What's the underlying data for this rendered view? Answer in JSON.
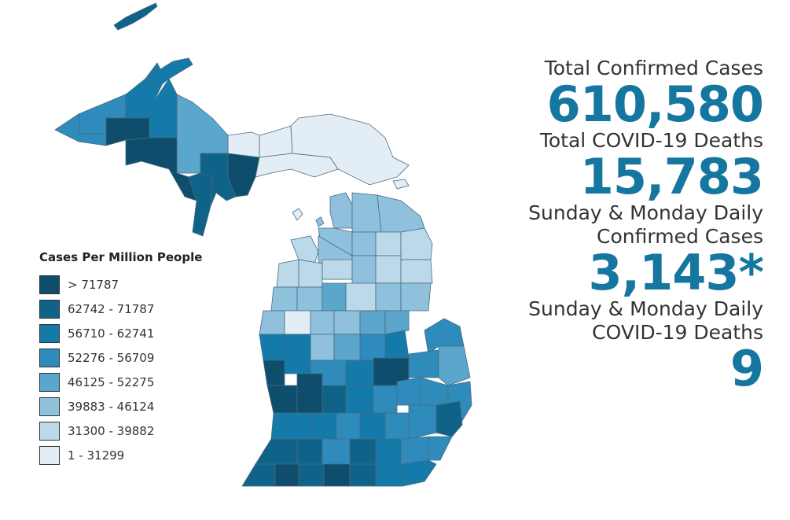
{
  "colors": {
    "c1": "#0e4d6b",
    "c2": "#0f6388",
    "c3": "#137aaa",
    "c4": "#2e8bbc",
    "c5": "#5aa6cc",
    "c6": "#8fc1dd",
    "c7": "#bcd9ea",
    "c8": "#e3edf5",
    "accent": "#1576a0"
  },
  "legend": {
    "title": "Cases Per Million People",
    "items": [
      {
        "label": "> 71787",
        "color": "#0e4d6b"
      },
      {
        "label": "62742 - 71787",
        "color": "#0f6388"
      },
      {
        "label": "56710 - 62741",
        "color": "#137aaa"
      },
      {
        "label": "52276 - 56709",
        "color": "#2e8bbc"
      },
      {
        "label": "46125 - 52275",
        "color": "#5aa6cc"
      },
      {
        "label": "39883 - 46124",
        "color": "#8fc1dd"
      },
      {
        "label": "31300 - 39882",
        "color": "#bcd9ea"
      },
      {
        "label": "1 - 31299",
        "color": "#e3edf5"
      }
    ]
  },
  "stats": {
    "total_cases_label": "Total Confirmed Cases",
    "total_cases_value": "610,580",
    "total_deaths_label": "Total COVID-19 Deaths",
    "total_deaths_value": "15,783",
    "daily_cases_label": "Sunday & Monday Daily Confirmed Cases",
    "daily_cases_value": "3,143*",
    "daily_deaths_label": "Sunday & Monday Daily COVID-19 Deaths",
    "daily_deaths_value": "9"
  }
}
